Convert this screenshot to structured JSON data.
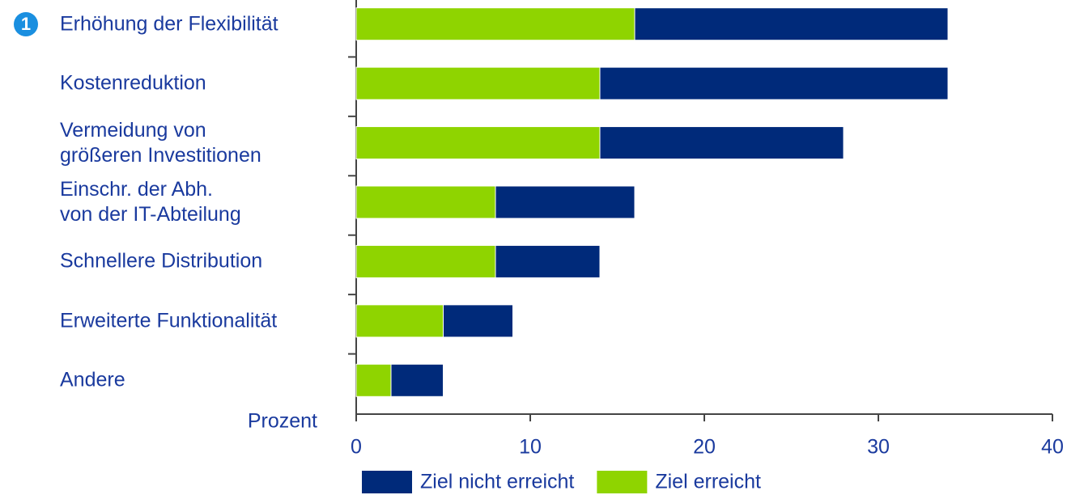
{
  "chart_data": {
    "type": "stacked_barh",
    "annotation": "1",
    "xlabel": "Prozent",
    "categories": [
      "Erhöhung der Flexibilität",
      "Kostenreduktion",
      "Vermeidung von\ngrößeren Investitionen",
      "Einschr. der Abh.\nvon der IT-Abteilung",
      "Schnellere Distribution",
      "Erweiterte Funktionalität",
      "Andere"
    ],
    "series": [
      {
        "name": "Ziel erreicht",
        "color": "#8fd400",
        "values": [
          16,
          14,
          14,
          8,
          8,
          5,
          2
        ]
      },
      {
        "name": "Ziel nicht erreicht",
        "color": "#002a7a",
        "values": [
          18,
          20,
          14,
          8,
          6,
          4,
          3
        ]
      }
    ],
    "xlim": [
      0,
      40
    ],
    "xticks": [
      0,
      10,
      20,
      30,
      40
    ]
  }
}
